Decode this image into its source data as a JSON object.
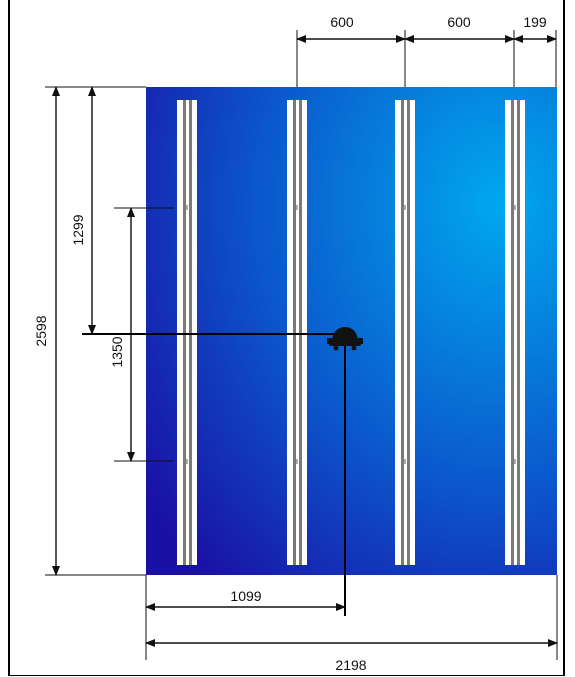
{
  "diagram": {
    "panel_color_center": "#00a5ec",
    "panel_color_edge": "#1a14a8",
    "rail_color": "#ffffff",
    "rail_line_color": "#7a7a7a",
    "dimensions": {
      "top_spacing_1": "600",
      "top_spacing_2": "600",
      "top_edge": "199",
      "total_height": "2598",
      "upper_offset": "1299",
      "mount_span": "1350",
      "half_width": "1099",
      "total_width": "2198"
    },
    "center_mount_icon": "camera-mount-icon"
  }
}
